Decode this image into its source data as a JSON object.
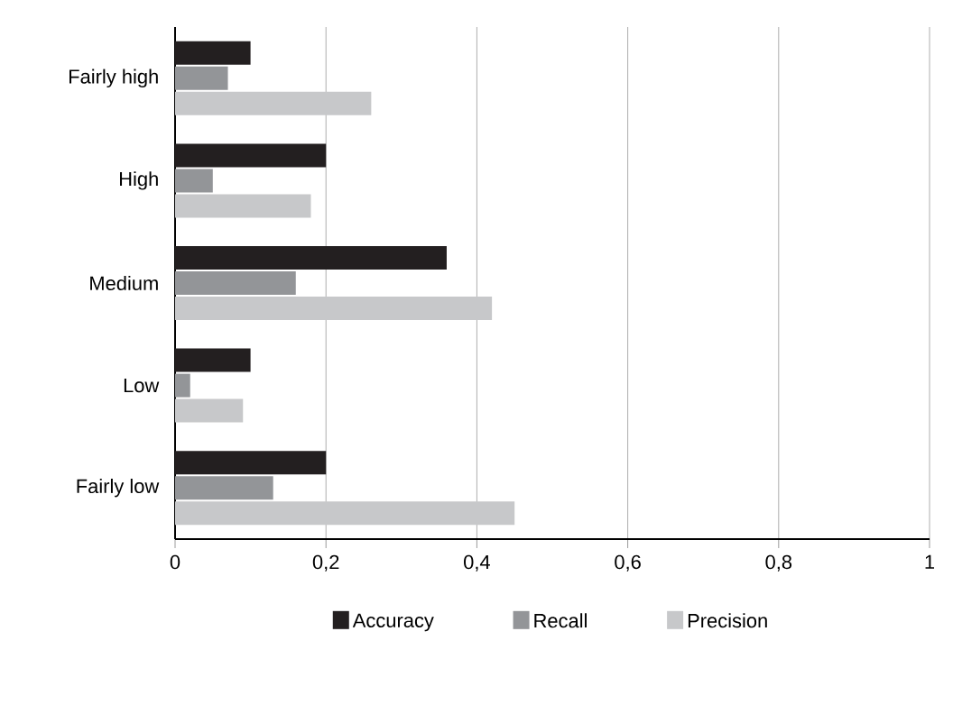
{
  "chart_data": {
    "type": "bar",
    "orientation": "horizontal",
    "categories": [
      "Fairly high",
      "High",
      "Medium",
      "Low",
      "Fairly low"
    ],
    "series": [
      {
        "name": "Accuracy",
        "color": "#231f20",
        "values": [
          0.1,
          0.2,
          0.36,
          0.1,
          0.2
        ]
      },
      {
        "name": "Recall",
        "color": "#939598",
        "values": [
          0.07,
          0.05,
          0.16,
          0.02,
          0.13
        ]
      },
      {
        "name": "Precision",
        "color": "#c7c8ca",
        "values": [
          0.26,
          0.18,
          0.42,
          0.09,
          0.45
        ]
      }
    ],
    "xlim": [
      0,
      1
    ],
    "xticks": [
      0,
      {
        "value": 0.2,
        "label": "0,2"
      },
      {
        "value": 0.4,
        "label": "0,4"
      },
      {
        "value": 0.6,
        "label": "0,6"
      },
      {
        "value": 0.8,
        "label": "0,8"
      },
      1
    ],
    "grid": "x",
    "legend": "bottom"
  }
}
